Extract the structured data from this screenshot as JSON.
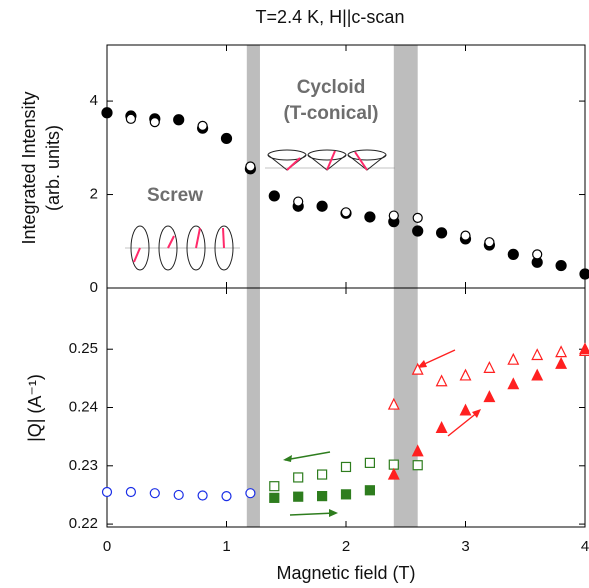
{
  "chart_data": [
    {
      "type": "scatter",
      "title": "T=2.4 K, H||c-scan",
      "ylabel": [
        "Integrated Intensity",
        "(arb. units)"
      ],
      "annotations": [
        "Cycloid",
        "(T-conical)",
        "Screw"
      ],
      "xlim": [
        0,
        4
      ],
      "xticks": [
        0,
        1,
        2,
        3,
        4
      ],
      "ylim": [
        0,
        5.2
      ],
      "yticks": [
        0,
        2,
        4
      ],
      "bands": [
        [
          1.17,
          1.28
        ],
        [
          2.4,
          2.6
        ]
      ],
      "series": [
        {
          "color": "#000000",
          "marker": "circle",
          "filled": true,
          "x": [
            0,
            0.2,
            0.4,
            0.6,
            0.8,
            1.0,
            1.2,
            1.4,
            1.6,
            1.8,
            2.0,
            2.2,
            2.4,
            2.6,
            2.8,
            3.0,
            3.2,
            3.4,
            3.6,
            3.8,
            4.0
          ],
          "values": [
            3.75,
            3.68,
            3.62,
            3.6,
            3.42,
            3.2,
            2.55,
            1.97,
            1.75,
            1.75,
            1.6,
            1.52,
            1.42,
            1.22,
            1.18,
            1.05,
            0.92,
            0.72,
            0.55,
            0.48,
            0.3
          ]
        },
        {
          "color": "#000000",
          "marker": "circle",
          "filled": false,
          "x": [
            0.2,
            0.4,
            0.8,
            1.2,
            1.6,
            2.0,
            2.4,
            2.6,
            3.0,
            3.2,
            3.6
          ],
          "values": [
            3.62,
            3.55,
            3.47,
            2.6,
            1.85,
            1.62,
            1.55,
            1.5,
            1.12,
            0.98,
            0.72
          ]
        }
      ]
    },
    {
      "type": "scatter",
      "xlabel": "Magnetic field (T)",
      "ylabel": [
        "|Q| (A⁻¹)"
      ],
      "xlim": [
        0,
        4
      ],
      "xticks": [
        0,
        1,
        2,
        3,
        4
      ],
      "ylim": [
        0.2195,
        0.2605
      ],
      "yticks": [
        0.22,
        0.23,
        0.24,
        0.25
      ],
      "bands": [
        [
          1.17,
          1.28
        ],
        [
          2.4,
          2.6
        ]
      ],
      "series": [
        {
          "color": "#1a2ee6",
          "marker": "circle",
          "filled": false,
          "x": [
            0,
            0.2,
            0.4,
            0.6,
            0.8,
            1.0,
            1.2
          ],
          "values": [
            0.2255,
            0.2255,
            0.2253,
            0.225,
            0.2249,
            0.2248,
            0.2253
          ]
        },
        {
          "color": "#2e7d1e",
          "marker": "square",
          "filled": false,
          "x": [
            1.4,
            1.6,
            1.8,
            2.0,
            2.2,
            2.4,
            2.6
          ],
          "values": [
            0.2265,
            0.228,
            0.2285,
            0.2298,
            0.2305,
            0.2302,
            0.2301
          ]
        },
        {
          "color": "#2e7d1e",
          "marker": "square",
          "filled": true,
          "x": [
            1.4,
            1.6,
            1.8,
            2.0,
            2.2
          ],
          "values": [
            0.2245,
            0.2247,
            0.2248,
            0.2251,
            0.2258
          ]
        },
        {
          "color": "#ff2020",
          "marker": "triangle",
          "filled": false,
          "x": [
            2.4,
            2.6,
            2.8,
            3.0,
            3.2,
            3.4,
            3.6,
            3.8,
            4.0
          ],
          "values": [
            0.2405,
            0.2465,
            0.2445,
            0.2455,
            0.2468,
            0.2482,
            0.249,
            0.2495,
            0.2497
          ]
        },
        {
          "color": "#ff2020",
          "marker": "triangle",
          "filled": true,
          "x": [
            2.4,
            2.6,
            2.8,
            3.0,
            3.2,
            3.4,
            3.6,
            3.8,
            4.0
          ],
          "values": [
            0.2285,
            0.2325,
            0.2365,
            0.2395,
            0.2418,
            0.244,
            0.2455,
            0.2475,
            0.25
          ]
        }
      ]
    }
  ]
}
